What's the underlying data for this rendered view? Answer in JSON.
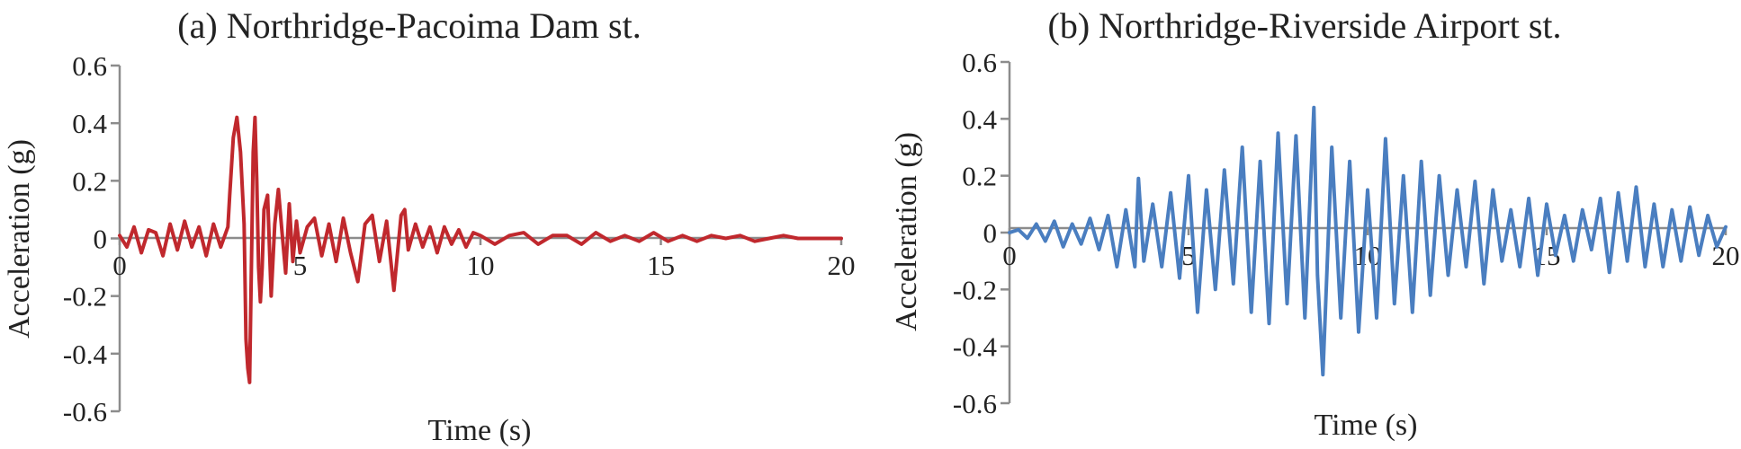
{
  "chart_data": [
    {
      "type": "line",
      "title": "(a) Northridge-Pacoima Dam st.",
      "xlabel": "Time (s)",
      "ylabel": "Acceleration (g)",
      "xlim": [
        0,
        20
      ],
      "ylim": [
        -0.6,
        0.6
      ],
      "xticks": [
        0,
        5,
        10,
        15,
        20
      ],
      "yticks": [
        -0.6,
        -0.4,
        -0.2,
        0,
        0.2,
        0.4,
        0.6
      ],
      "xtick_labels": [
        "0",
        "5",
        "10",
        "15",
        "20"
      ],
      "ytick_labels": [
        "-0.6",
        "-0.4",
        "-0.2",
        "0",
        "0.2",
        "0.4",
        "0.6"
      ],
      "grid": false,
      "color": "#c0282d",
      "series": [
        {
          "x": [
            0,
            0.2,
            0.4,
            0.6,
            0.8,
            1,
            1.2,
            1.4,
            1.6,
            1.8,
            2,
            2.2,
            2.4,
            2.6,
            2.8,
            3,
            3.05,
            3.15,
            3.25,
            3.35,
            3.45,
            3.5,
            3.55,
            3.6,
            3.65,
            3.7,
            3.75,
            3.8,
            3.85,
            3.9,
            3.95,
            4,
            4.1,
            4.2,
            4.3,
            4.4,
            4.5,
            4.6,
            4.7,
            4.8,
            4.9,
            5,
            5.2,
            5.4,
            5.6,
            5.8,
            6,
            6.2,
            6.4,
            6.6,
            6.8,
            7,
            7.2,
            7.4,
            7.6,
            7.8,
            7.9,
            8,
            8.2,
            8.4,
            8.6,
            8.8,
            9,
            9.2,
            9.4,
            9.6,
            9.8,
            10,
            10.4,
            10.8,
            11.2,
            11.6,
            12,
            12.4,
            12.8,
            13.2,
            13.6,
            14,
            14.4,
            14.8,
            15.2,
            15.6,
            16,
            16.4,
            16.8,
            17.2,
            17.6,
            18,
            18.4,
            18.8,
            19.2,
            19.6,
            20
          ],
          "y": [
            0.01,
            -0.03,
            0.04,
            -0.05,
            0.03,
            0.02,
            -0.06,
            0.05,
            -0.04,
            0.06,
            -0.03,
            0.04,
            -0.06,
            0.05,
            -0.03,
            0.04,
            0.15,
            0.35,
            0.42,
            0.3,
            0.05,
            -0.35,
            -0.45,
            -0.5,
            -0.1,
            0.3,
            0.42,
            0.2,
            -0.1,
            -0.22,
            -0.1,
            0.1,
            0.15,
            -0.2,
            0.05,
            0.17,
            0.02,
            -0.12,
            0.12,
            -0.08,
            0.06,
            -0.05,
            0.04,
            0.07,
            -0.06,
            0.05,
            -0.08,
            0.07,
            -0.05,
            -0.15,
            0.05,
            0.08,
            -0.08,
            0.06,
            -0.18,
            0.08,
            0.1,
            -0.04,
            0.05,
            -0.03,
            0.04,
            -0.05,
            0.04,
            -0.02,
            0.03,
            -0.03,
            0.02,
            0.01,
            -0.02,
            0.01,
            0.02,
            -0.02,
            0.01,
            0.01,
            -0.02,
            0.02,
            -0.01,
            0.01,
            -0.01,
            0.02,
            -0.01,
            0.01,
            -0.01,
            0.01,
            0.0,
            0.01,
            -0.01,
            0.0,
            0.01,
            0.0,
            0.0,
            0.0,
            0.0
          ]
        }
      ]
    },
    {
      "type": "line",
      "title": "(b) Northridge-Riverside Airport st.",
      "xlabel": "Time (s)",
      "ylabel": "Acceleration  (g)",
      "xlim": [
        0,
        20
      ],
      "ylim": [
        -0.6,
        0.6
      ],
      "xticks": [
        0,
        5,
        10,
        15,
        20
      ],
      "yticks": [
        -0.6,
        -0.4,
        -0.2,
        0,
        0.2,
        0.4,
        0.6
      ],
      "xtick_labels": [
        "0",
        "5",
        "10",
        "15",
        "20"
      ],
      "ytick_labels": [
        "-0.6",
        "-0.4",
        "-0.2",
        "0",
        "0.2",
        "0.4",
        "0.6"
      ],
      "grid": false,
      "color": "#4a7ec0",
      "series": [
        {
          "x": [
            0,
            0.25,
            0.5,
            0.75,
            1,
            1.25,
            1.5,
            1.75,
            2,
            2.25,
            2.5,
            2.75,
            3,
            3.25,
            3.5,
            3.6,
            3.75,
            4,
            4.25,
            4.5,
            4.75,
            5,
            5.25,
            5.5,
            5.75,
            6,
            6.25,
            6.5,
            6.75,
            7,
            7.25,
            7.5,
            7.75,
            8,
            8.25,
            8.5,
            8.6,
            8.75,
            9,
            9.25,
            9.5,
            9.75,
            10,
            10.25,
            10.5,
            10.75,
            11,
            11.25,
            11.5,
            11.75,
            12,
            12.25,
            12.5,
            12.75,
            13,
            13.25,
            13.5,
            13.75,
            14,
            14.25,
            14.5,
            14.75,
            15,
            15.25,
            15.5,
            15.75,
            16,
            16.25,
            16.5,
            16.75,
            17,
            17.25,
            17.5,
            17.75,
            18,
            18.25,
            18.5,
            18.75,
            19,
            19.25,
            19.5,
            19.75,
            20
          ],
          "y": [
            0,
            0.01,
            -0.02,
            0.03,
            -0.03,
            0.04,
            -0.05,
            0.03,
            -0.04,
            0.05,
            -0.06,
            0.06,
            -0.12,
            0.08,
            -0.12,
            0.19,
            -0.1,
            0.1,
            -0.12,
            0.14,
            -0.16,
            0.2,
            -0.28,
            0.15,
            -0.2,
            0.22,
            -0.18,
            0.3,
            -0.28,
            0.25,
            -0.32,
            0.35,
            -0.25,
            0.34,
            -0.3,
            0.44,
            -0.15,
            -0.5,
            0.3,
            -0.3,
            0.25,
            -0.35,
            0.15,
            -0.3,
            0.33,
            -0.25,
            0.2,
            -0.28,
            0.25,
            -0.22,
            0.2,
            -0.15,
            0.15,
            -0.12,
            0.18,
            -0.18,
            0.15,
            -0.1,
            0.08,
            -0.12,
            0.12,
            -0.15,
            0.1,
            -0.08,
            0.06,
            -0.1,
            0.08,
            -0.06,
            0.12,
            -0.14,
            0.14,
            -0.1,
            0.16,
            -0.12,
            0.1,
            -0.12,
            0.08,
            -0.1,
            0.09,
            -0.08,
            0.06,
            -0.05,
            0.02
          ]
        }
      ]
    }
  ]
}
